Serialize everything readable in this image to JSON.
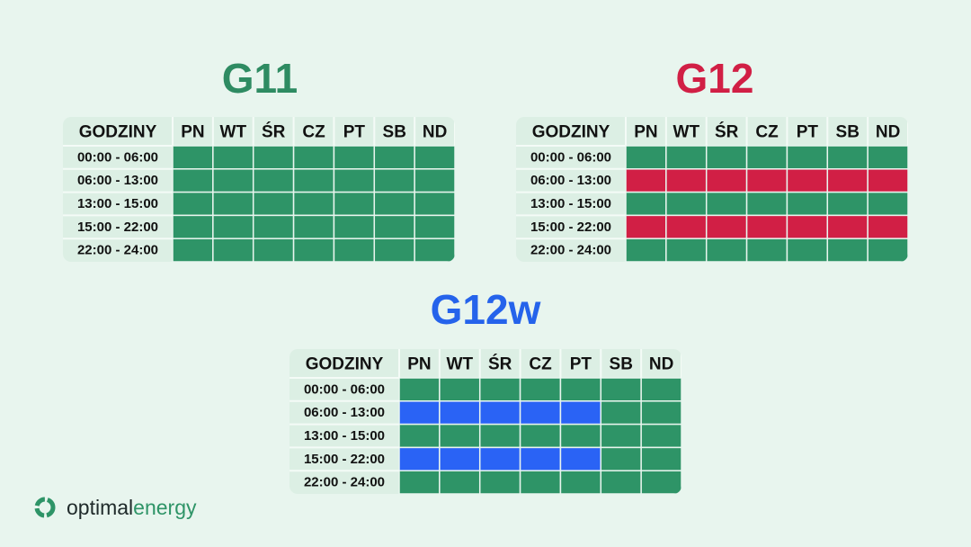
{
  "tables": [
    {
      "title": "G11",
      "title_color": "#2e8b62",
      "header": [
        "GODZINY",
        "PN",
        "WT",
        "ŚR",
        "CZ",
        "PT",
        "SB",
        "ND"
      ],
      "rows": [
        "00:00 - 06:00",
        "06:00 - 13:00",
        "13:00 - 15:00",
        "15:00 - 22:00",
        "22:00 - 24:00"
      ],
      "cells": [
        [
          "#2e9467",
          "#2e9467",
          "#2e9467",
          "#2e9467",
          "#2e9467",
          "#2e9467",
          "#2e9467"
        ],
        [
          "#2e9467",
          "#2e9467",
          "#2e9467",
          "#2e9467",
          "#2e9467",
          "#2e9467",
          "#2e9467"
        ],
        [
          "#2e9467",
          "#2e9467",
          "#2e9467",
          "#2e9467",
          "#2e9467",
          "#2e9467",
          "#2e9467"
        ],
        [
          "#2e9467",
          "#2e9467",
          "#2e9467",
          "#2e9467",
          "#2e9467",
          "#2e9467",
          "#2e9467"
        ],
        [
          "#2e9467",
          "#2e9467",
          "#2e9467",
          "#2e9467",
          "#2e9467",
          "#2e9467",
          "#2e9467"
        ]
      ]
    },
    {
      "title": "G12",
      "title_color": "#d11f45",
      "header": [
        "GODZINY",
        "PN",
        "WT",
        "ŚR",
        "CZ",
        "PT",
        "SB",
        "ND"
      ],
      "rows": [
        "00:00 - 06:00",
        "06:00 - 13:00",
        "13:00 - 15:00",
        "15:00 - 22:00",
        "22:00 - 24:00"
      ],
      "cells": [
        [
          "#2e9467",
          "#2e9467",
          "#2e9467",
          "#2e9467",
          "#2e9467",
          "#2e9467",
          "#2e9467"
        ],
        [
          "#d11f45",
          "#d11f45",
          "#d11f45",
          "#d11f45",
          "#d11f45",
          "#d11f45",
          "#d11f45"
        ],
        [
          "#2e9467",
          "#2e9467",
          "#2e9467",
          "#2e9467",
          "#2e9467",
          "#2e9467",
          "#2e9467"
        ],
        [
          "#d11f45",
          "#d11f45",
          "#d11f45",
          "#d11f45",
          "#d11f45",
          "#d11f45",
          "#d11f45"
        ],
        [
          "#2e9467",
          "#2e9467",
          "#2e9467",
          "#2e9467",
          "#2e9467",
          "#2e9467",
          "#2e9467"
        ]
      ]
    },
    {
      "title": "G12w",
      "title_color": "#2563eb",
      "header": [
        "GODZINY",
        "PN",
        "WT",
        "ŚR",
        "CZ",
        "PT",
        "SB",
        "ND"
      ],
      "rows": [
        "00:00 - 06:00",
        "06:00 - 13:00",
        "13:00 - 15:00",
        "15:00 - 22:00",
        "22:00 - 24:00"
      ],
      "cells": [
        [
          "#2e9467",
          "#2e9467",
          "#2e9467",
          "#2e9467",
          "#2e9467",
          "#2e9467",
          "#2e9467"
        ],
        [
          "#2a63f5",
          "#2a63f5",
          "#2a63f5",
          "#2a63f5",
          "#2a63f5",
          "#2e9467",
          "#2e9467"
        ],
        [
          "#2e9467",
          "#2e9467",
          "#2e9467",
          "#2e9467",
          "#2e9467",
          "#2e9467",
          "#2e9467"
        ],
        [
          "#2a63f5",
          "#2a63f5",
          "#2a63f5",
          "#2a63f5",
          "#2a63f5",
          "#2e9467",
          "#2e9467"
        ],
        [
          "#2e9467",
          "#2e9467",
          "#2e9467",
          "#2e9467",
          "#2e9467",
          "#2e9467",
          "#2e9467"
        ]
      ]
    }
  ],
  "logo": {
    "text1": "optimal",
    "text2": "energy"
  }
}
